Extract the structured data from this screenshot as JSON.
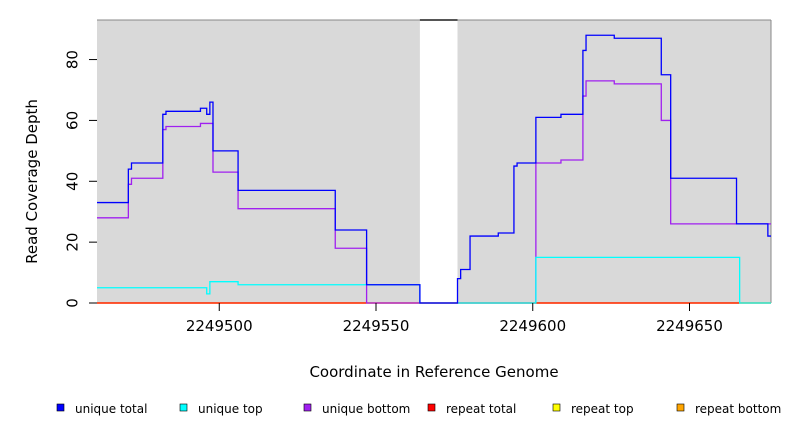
{
  "chart_data": {
    "type": "line",
    "xlabel": "Coordinate in Reference Genome",
    "ylabel": "Read Coverage Depth",
    "xlim": [
      2249461,
      2249676
    ],
    "ylim": [
      0,
      93
    ],
    "x_ticks": [
      2249500,
      2249550,
      2249600,
      2249650
    ],
    "y_ticks": [
      0,
      20,
      40,
      60,
      80
    ],
    "gap": [
      2249564,
      2249576
    ],
    "grid": false,
    "legend_position": "bottom",
    "series": [
      {
        "name": "unique total",
        "color": "#0000ff",
        "steps": [
          [
            2249461,
            33
          ],
          [
            2249471,
            44
          ],
          [
            2249472,
            46
          ],
          [
            2249482,
            62
          ],
          [
            2249483,
            63
          ],
          [
            2249494,
            64
          ],
          [
            2249496,
            62
          ],
          [
            2249497,
            66
          ],
          [
            2249498,
            50
          ],
          [
            2249506,
            37
          ],
          [
            2249537,
            24
          ],
          [
            2249547,
            6
          ],
          [
            2249564,
            0
          ],
          [
            2249576,
            8
          ],
          [
            2249577,
            11
          ],
          [
            2249580,
            22
          ],
          [
            2249589,
            23
          ],
          [
            2249594,
            45
          ],
          [
            2249595,
            46
          ],
          [
            2249601,
            61
          ],
          [
            2249609,
            62
          ],
          [
            2249616,
            83
          ],
          [
            2249617,
            88
          ],
          [
            2249626,
            87
          ],
          [
            2249641,
            75
          ],
          [
            2249644,
            41
          ],
          [
            2249665,
            26
          ],
          [
            2249675,
            22
          ],
          [
            2249676,
            22
          ]
        ]
      },
      {
        "name": "unique top",
        "color": "#00ffff",
        "steps": [
          [
            2249461,
            5
          ],
          [
            2249496,
            3
          ],
          [
            2249497,
            7
          ],
          [
            2249506,
            6
          ],
          [
            2249564,
            0
          ],
          [
            2249601,
            15
          ],
          [
            2249666,
            0
          ],
          [
            2249676,
            0
          ]
        ]
      },
      {
        "name": "unique bottom",
        "color": "#a020f0",
        "steps": [
          [
            2249461,
            28
          ],
          [
            2249471,
            39
          ],
          [
            2249472,
            41
          ],
          [
            2249482,
            57
          ],
          [
            2249483,
            58
          ],
          [
            2249494,
            59
          ],
          [
            2249498,
            43
          ],
          [
            2249506,
            31
          ],
          [
            2249537,
            18
          ],
          [
            2249547,
            0
          ],
          [
            2249564,
            0
          ],
          [
            2249601,
            46
          ],
          [
            2249609,
            47
          ],
          [
            2249616,
            68
          ],
          [
            2249617,
            73
          ],
          [
            2249626,
            72
          ],
          [
            2249641,
            60
          ],
          [
            2249644,
            26
          ],
          [
            2249665,
            26
          ],
          [
            2249676,
            26
          ]
        ]
      },
      {
        "name": "repeat total",
        "color": "#ff0000",
        "steps": [
          [
            2249461,
            0
          ],
          [
            2249676,
            0
          ]
        ]
      },
      {
        "name": "repeat top",
        "color": "#ffff00",
        "steps": [
          [
            2249461,
            0
          ],
          [
            2249676,
            0
          ]
        ]
      },
      {
        "name": "repeat bottom",
        "color": "#ffa500",
        "steps": [
          [
            2249461,
            0
          ],
          [
            2249676,
            0
          ]
        ]
      }
    ]
  }
}
